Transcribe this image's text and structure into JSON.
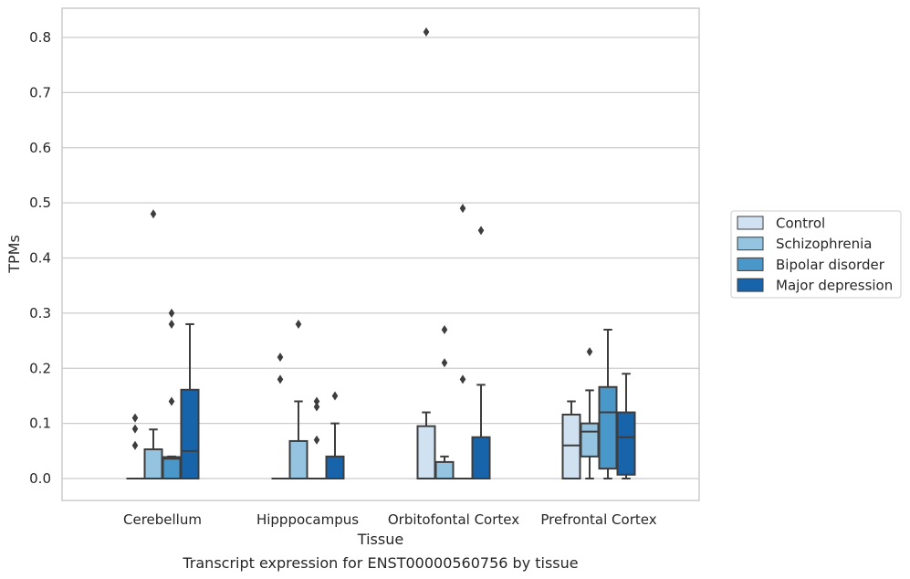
{
  "chart_data": {
    "type": "box",
    "xlabel": "Tissue",
    "ylabel": "TPMs",
    "caption": "Transcript expression for ENST00000560756 by tissue",
    "categories": [
      "Cerebellum",
      "Hipppocampus",
      "Orbitofontal Cortex",
      "Prefrontal Cortex"
    ],
    "ylim": [
      -0.04,
      0.855
    ],
    "yticks": [
      0.0,
      0.1,
      0.2,
      0.3,
      0.4,
      0.5,
      0.6,
      0.7,
      0.8
    ],
    "ytick_labels": [
      "0.0",
      "0.1",
      "0.2",
      "0.3",
      "0.4",
      "0.5",
      "0.6",
      "0.7",
      "0.8"
    ],
    "grid": "horizontal",
    "legend_position": "right",
    "series": [
      {
        "name": "Control",
        "color": "#d0e1f2",
        "boxes": [
          {
            "q1": 0.0,
            "median": 0.0,
            "q3": 0.0,
            "whislo": 0.0,
            "whishi": 0.0,
            "fliers": [
              0.06,
              0.09,
              0.11
            ]
          },
          {
            "q1": 0.0,
            "median": 0.0,
            "q3": 0.0,
            "whislo": 0.0,
            "whishi": 0.0,
            "fliers": [
              0.18,
              0.22
            ]
          },
          {
            "q1": 0.0,
            "median": 0.0,
            "q3": 0.095,
            "whislo": 0.0,
            "whishi": 0.12,
            "fliers": [
              0.81
            ]
          },
          {
            "q1": 0.0,
            "median": 0.06,
            "q3": 0.116,
            "whislo": 0.0,
            "whishi": 0.14,
            "fliers": []
          }
        ]
      },
      {
        "name": "Schizophrenia",
        "color": "#94c4df",
        "boxes": [
          {
            "q1": 0.0,
            "median": 0.0,
            "q3": 0.053,
            "whislo": 0.0,
            "whishi": 0.089,
            "fliers": [
              0.48
            ]
          },
          {
            "q1": 0.0,
            "median": 0.0,
            "q3": 0.068,
            "whislo": 0.0,
            "whishi": 0.14,
            "fliers": [
              0.28
            ]
          },
          {
            "q1": 0.0,
            "median": 0.0,
            "q3": 0.03,
            "whislo": 0.0,
            "whishi": 0.04,
            "fliers": [
              0.21,
              0.27
            ]
          },
          {
            "q1": 0.04,
            "median": 0.085,
            "q3": 0.1,
            "whislo": 0.0,
            "whishi": 0.16,
            "fliers": [
              0.23
            ]
          }
        ]
      },
      {
        "name": "Bipolar disorder",
        "color": "#4a98c9",
        "boxes": [
          {
            "q1": 0.0,
            "median": 0.036,
            "q3": 0.039,
            "whislo": 0.0,
            "whishi": 0.04,
            "fliers": [
              0.14,
              0.28,
              0.3
            ]
          },
          {
            "q1": 0.0,
            "median": 0.0,
            "q3": 0.0,
            "whislo": 0.0,
            "whishi": 0.0,
            "fliers": [
              0.07,
              0.13,
              0.14
            ]
          },
          {
            "q1": 0.0,
            "median": 0.0,
            "q3": 0.0,
            "whislo": 0.0,
            "whishi": 0.0,
            "fliers": [
              0.18,
              0.49
            ]
          },
          {
            "q1": 0.018,
            "median": 0.12,
            "q3": 0.166,
            "whislo": 0.0,
            "whishi": 0.27,
            "fliers": []
          }
        ]
      },
      {
        "name": "Major depression",
        "color": "#1764ab",
        "boxes": [
          {
            "q1": 0.0,
            "median": 0.05,
            "q3": 0.161,
            "whislo": 0.0,
            "whishi": 0.28,
            "fliers": []
          },
          {
            "q1": 0.0,
            "median": 0.0,
            "q3": 0.04,
            "whislo": 0.0,
            "whishi": 0.1,
            "fliers": [
              0.15
            ]
          },
          {
            "q1": 0.0,
            "median": 0.0,
            "q3": 0.075,
            "whislo": 0.0,
            "whishi": 0.17,
            "fliers": [
              0.45
            ]
          },
          {
            "q1": 0.007,
            "median": 0.075,
            "q3": 0.12,
            "whislo": 0.0,
            "whishi": 0.19,
            "fliers": []
          }
        ]
      }
    ]
  }
}
